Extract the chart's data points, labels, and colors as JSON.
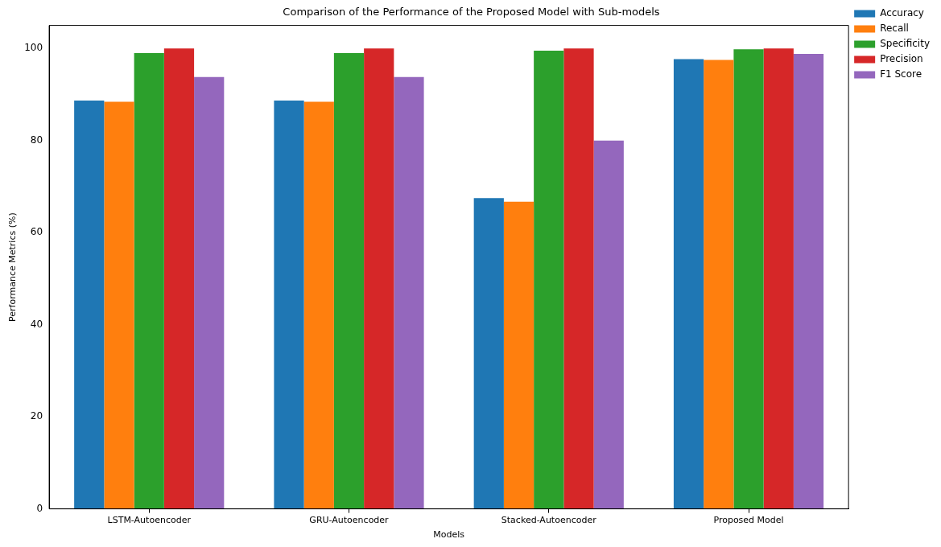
{
  "chart_data": {
    "type": "bar",
    "title": "Comparison of the Performance of the Proposed Model with Sub-models",
    "xlabel": "Models",
    "ylabel": "Performance Metrics (%)",
    "categories": [
      "LSTM-Autoencoder",
      "GRU-Autoencoder",
      "Stacked-Autoencoder",
      "Proposed Model"
    ],
    "series": [
      {
        "name": "Accuracy",
        "color": "#1f77b4",
        "values": [
          88.7,
          88.7,
          67.5,
          97.7
        ]
      },
      {
        "name": "Recall",
        "color": "#ff7f0e",
        "values": [
          88.4,
          88.4,
          66.7,
          97.5
        ]
      },
      {
        "name": "Specificity",
        "color": "#2ca02c",
        "values": [
          99.0,
          99.0,
          99.5,
          99.8
        ]
      },
      {
        "name": "Precision",
        "color": "#d62728",
        "values": [
          100,
          100,
          100,
          100
        ]
      },
      {
        "name": "F1 Score",
        "color": "#9467bd",
        "values": [
          93.8,
          93.8,
          80.0,
          98.8
        ]
      }
    ],
    "ylim": [
      0,
      105
    ],
    "yticks": [
      0,
      20,
      40,
      60,
      80,
      100
    ],
    "grid": false,
    "legend": "top right"
  }
}
